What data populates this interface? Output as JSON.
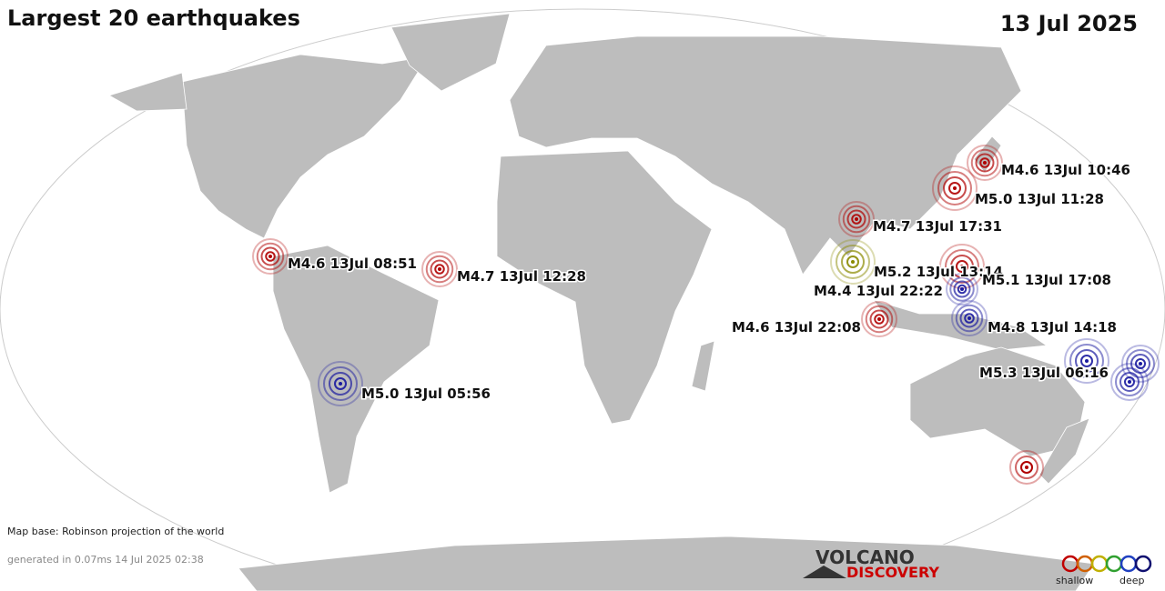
{
  "header": {
    "title": "Largest 20 earthquakes",
    "date": "13 Jul 2025"
  },
  "earthquakes": [
    {
      "label": "M4.6 13Jul 10:46",
      "color": "#b00000"
    },
    {
      "label": "M5.0 13Jul 11:28",
      "color": "#b00000"
    },
    {
      "label": "M4.7 13Jul 17:31",
      "color": "#b00000"
    },
    {
      "label": "M4.6 13Jul 08:51",
      "color": "#b00000"
    },
    {
      "label": "M4.7 13Jul 12:28",
      "color": "#b00000"
    },
    {
      "label": "M5.2 13Jul 13:14",
      "color": "#8a8a00"
    },
    {
      "label": "M5.1 13Jul 17:08",
      "color": "#b00000"
    },
    {
      "label": "M4.4 13Jul 22:22",
      "color": "#1a1aa0"
    },
    {
      "label": "M4.6 13Jul 22:08",
      "color": "#b00000"
    },
    {
      "label": "M4.8 13Jul 14:18",
      "color": "#1a1aa0"
    },
    {
      "label": "M5.3 13Jul 06:16",
      "color": "#1a1aa0"
    },
    {
      "label": "M5.0 13Jul 05:56",
      "color": "#1a1aa0"
    }
  ],
  "footer": {
    "map_base": "Map base: Robinson projection of the world",
    "generated": "generated in 0.07ms 14 Jul 2025 02:38"
  },
  "logo": {
    "line1": "VOLCANO",
    "line2": "DISCOVERY"
  },
  "legend": {
    "shallow": "shallow",
    "deep": "deep"
  }
}
